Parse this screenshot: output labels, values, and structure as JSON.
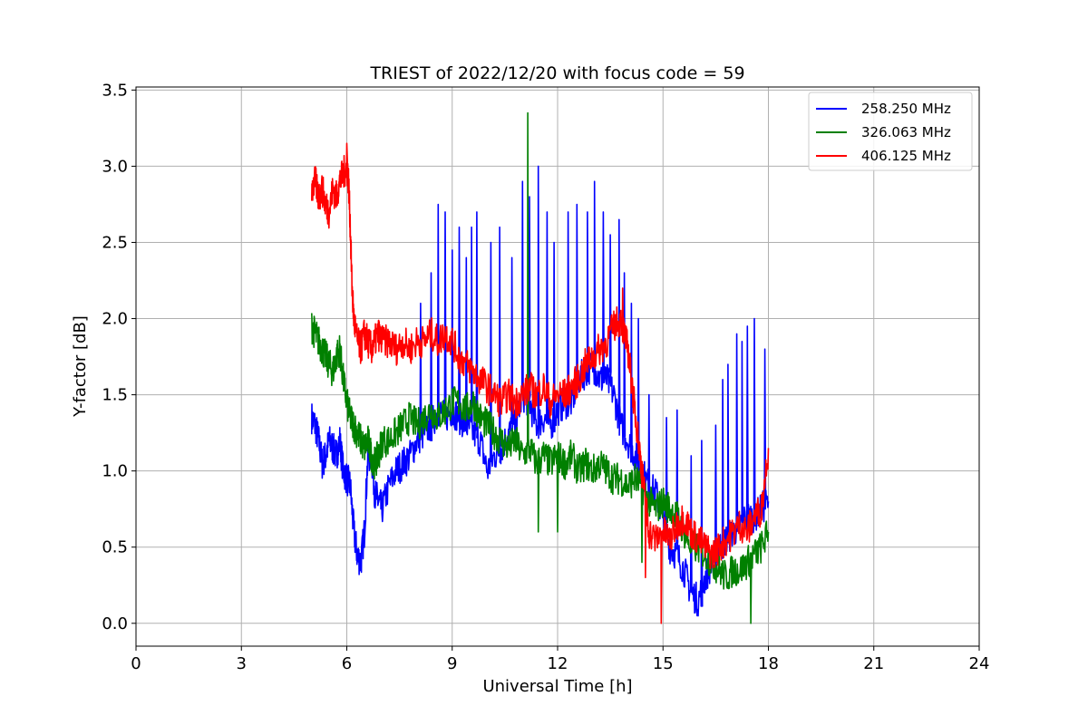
{
  "chart_data": {
    "type": "line",
    "title": "TRIEST of 2022/12/20 with focus code = 59",
    "xlabel": "Universal Time [h]",
    "ylabel": "Y-factor [dB]",
    "xlim": [
      0,
      24
    ],
    "ylim": [
      -0.15,
      3.52
    ],
    "xticks": [
      0,
      3,
      6,
      9,
      12,
      15,
      18,
      21,
      24
    ],
    "yticks": [
      0.0,
      0.5,
      1.0,
      1.5,
      2.0,
      2.5,
      3.0,
      3.5
    ],
    "xtick_labels": [
      "0",
      "3",
      "6",
      "9",
      "12",
      "15",
      "18",
      "21",
      "24"
    ],
    "ytick_labels": [
      "0.0",
      "0.5",
      "1.0",
      "1.5",
      "2.0",
      "2.5",
      "3.0",
      "3.5"
    ],
    "grid": true,
    "legend_position": "top-right",
    "series": [
      {
        "name": "258.250 MHz",
        "color": "#0000ff",
        "x": [
          5.0,
          5.1,
          5.2,
          5.3,
          5.4,
          5.5,
          5.6,
          5.7,
          5.8,
          5.9,
          6.0,
          6.1,
          6.2,
          6.3,
          6.4,
          6.5,
          6.6,
          6.7,
          6.8,
          6.9,
          7.0,
          7.2,
          7.4,
          7.6,
          7.8,
          8.0,
          8.2,
          8.4,
          8.6,
          8.8,
          9.0,
          9.2,
          9.4,
          9.6,
          9.8,
          10.0,
          10.2,
          10.4,
          10.6,
          10.8,
          11.0,
          11.2,
          11.4,
          11.6,
          11.8,
          12.0,
          12.2,
          12.4,
          12.6,
          12.8,
          13.0,
          13.2,
          13.4,
          13.6,
          13.8,
          14.0,
          14.2,
          14.4,
          14.6,
          14.8,
          15.0,
          15.2,
          15.4,
          15.6,
          15.8,
          16.0,
          16.2,
          16.4,
          16.6,
          16.8,
          17.0,
          17.2,
          17.4,
          17.6,
          17.8,
          18.0
        ],
        "y": [
          1.35,
          1.3,
          1.2,
          1.05,
          1.1,
          1.2,
          1.15,
          1.1,
          1.2,
          1.0,
          0.95,
          0.9,
          0.6,
          0.45,
          0.4,
          0.6,
          1.1,
          1.1,
          0.85,
          0.8,
          0.75,
          0.9,
          1.0,
          1.05,
          1.1,
          1.2,
          1.25,
          1.3,
          1.4,
          1.35,
          1.4,
          1.35,
          1.3,
          1.25,
          1.2,
          1.0,
          1.1,
          1.15,
          1.25,
          1.3,
          1.5,
          1.45,
          1.3,
          1.35,
          1.3,
          1.4,
          1.45,
          1.45,
          1.6,
          1.65,
          1.7,
          1.6,
          1.6,
          1.5,
          1.3,
          1.2,
          1.1,
          1.0,
          0.9,
          0.85,
          0.7,
          0.5,
          0.45,
          0.35,
          0.2,
          0.15,
          0.3,
          0.4,
          0.5,
          0.55,
          0.6,
          0.65,
          0.7,
          0.7,
          0.75,
          0.8
        ],
        "spikes": [
          [
            8.1,
            2.1
          ],
          [
            8.4,
            2.3
          ],
          [
            8.6,
            2.75
          ],
          [
            8.8,
            2.7
          ],
          [
            9.0,
            2.45
          ],
          [
            9.2,
            2.6
          ],
          [
            9.4,
            2.4
          ],
          [
            9.55,
            2.6
          ],
          [
            9.7,
            2.7
          ],
          [
            10.1,
            2.5
          ],
          [
            10.35,
            2.6
          ],
          [
            10.7,
            2.4
          ],
          [
            11.0,
            2.9
          ],
          [
            11.2,
            2.8
          ],
          [
            11.45,
            3.0
          ],
          [
            11.7,
            2.7
          ],
          [
            11.9,
            2.5
          ],
          [
            12.3,
            2.7
          ],
          [
            12.55,
            2.75
          ],
          [
            12.85,
            2.7
          ],
          [
            13.05,
            2.9
          ],
          [
            13.3,
            2.7
          ],
          [
            13.5,
            2.55
          ],
          [
            13.75,
            2.65
          ],
          [
            13.9,
            2.3
          ],
          [
            14.1,
            2.1
          ],
          [
            14.3,
            2.0
          ],
          [
            14.6,
            1.5
          ],
          [
            15.1,
            1.35
          ],
          [
            15.4,
            1.4
          ],
          [
            15.8,
            1.1
          ],
          [
            16.1,
            1.2
          ],
          [
            16.5,
            1.3
          ],
          [
            16.7,
            1.6
          ],
          [
            16.85,
            1.7
          ],
          [
            17.1,
            1.9
          ],
          [
            17.25,
            1.85
          ],
          [
            17.4,
            1.95
          ],
          [
            17.6,
            2.0
          ],
          [
            17.9,
            1.8
          ]
        ]
      },
      {
        "name": "326.063 MHz",
        "color": "#008000",
        "x": [
          5.0,
          5.1,
          5.2,
          5.3,
          5.4,
          5.5,
          5.6,
          5.7,
          5.8,
          5.9,
          6.0,
          6.1,
          6.2,
          6.3,
          6.4,
          6.5,
          6.6,
          6.7,
          6.8,
          6.9,
          7.0,
          7.2,
          7.4,
          7.6,
          7.8,
          8.0,
          8.2,
          8.4,
          8.6,
          8.8,
          9.0,
          9.2,
          9.4,
          9.6,
          9.8,
          10.0,
          10.2,
          10.4,
          10.6,
          10.8,
          11.0,
          11.2,
          11.4,
          11.6,
          11.8,
          12.0,
          12.2,
          12.4,
          12.6,
          12.8,
          13.0,
          13.2,
          13.4,
          13.6,
          13.8,
          14.0,
          14.2,
          14.4,
          14.6,
          14.8,
          15.0,
          15.2,
          15.4,
          15.6,
          15.8,
          16.0,
          16.2,
          16.4,
          16.6,
          16.8,
          17.0,
          17.2,
          17.4,
          17.6,
          17.8,
          18.0
        ],
        "y": [
          1.95,
          1.9,
          1.85,
          1.8,
          1.75,
          1.7,
          1.65,
          1.75,
          1.8,
          1.6,
          1.45,
          1.35,
          1.3,
          1.25,
          1.2,
          1.15,
          1.2,
          1.1,
          1.05,
          1.1,
          1.2,
          1.2,
          1.25,
          1.3,
          1.35,
          1.3,
          1.35,
          1.4,
          1.35,
          1.4,
          1.45,
          1.45,
          1.4,
          1.45,
          1.35,
          1.3,
          1.25,
          1.2,
          1.15,
          1.2,
          1.1,
          1.15,
          1.05,
          1.1,
          1.05,
          1.1,
          1.05,
          1.1,
          1.0,
          1.05,
          1.0,
          1.05,
          1.0,
          0.95,
          0.95,
          0.9,
          0.95,
          0.9,
          0.8,
          0.75,
          0.8,
          0.75,
          0.7,
          0.6,
          0.5,
          0.5,
          0.45,
          0.4,
          0.35,
          0.3,
          0.35,
          0.35,
          0.4,
          0.45,
          0.5,
          0.6
        ],
        "spikes": [
          [
            11.15,
            3.35
          ],
          [
            11.45,
            0.6
          ],
          [
            12.0,
            0.6
          ],
          [
            14.4,
            0.4
          ],
          [
            17.5,
            0.0
          ]
        ]
      },
      {
        "name": "406.125 MHz",
        "color": "#ff0000",
        "x": [
          5.0,
          5.1,
          5.2,
          5.3,
          5.4,
          5.5,
          5.6,
          5.7,
          5.8,
          5.9,
          6.0,
          6.05,
          6.1,
          6.15,
          6.2,
          6.3,
          6.4,
          6.5,
          6.6,
          6.7,
          6.8,
          6.9,
          7.0,
          7.2,
          7.4,
          7.6,
          7.8,
          8.0,
          8.2,
          8.4,
          8.6,
          8.8,
          9.0,
          9.2,
          9.4,
          9.6,
          9.8,
          10.0,
          10.2,
          10.4,
          10.6,
          10.8,
          11.0,
          11.2,
          11.4,
          11.6,
          11.8,
          12.0,
          12.2,
          12.4,
          12.6,
          12.8,
          13.0,
          13.2,
          13.4,
          13.6,
          13.8,
          13.9,
          14.0,
          14.1,
          14.2,
          14.3,
          14.4,
          14.5,
          14.6,
          14.8,
          15.0,
          15.2,
          15.4,
          15.6,
          15.8,
          16.0,
          16.2,
          16.4,
          16.6,
          16.8,
          17.0,
          17.2,
          17.4,
          17.6,
          17.8,
          18.0
        ],
        "y": [
          2.85,
          2.9,
          2.8,
          2.85,
          2.75,
          2.7,
          2.85,
          2.8,
          2.9,
          2.95,
          3.0,
          2.9,
          2.6,
          2.2,
          2.0,
          1.85,
          1.8,
          1.9,
          1.85,
          1.8,
          1.85,
          1.9,
          1.85,
          1.85,
          1.8,
          1.85,
          1.8,
          1.85,
          1.85,
          1.9,
          1.85,
          1.9,
          1.85,
          1.75,
          1.7,
          1.65,
          1.6,
          1.55,
          1.5,
          1.45,
          1.5,
          1.45,
          1.5,
          1.55,
          1.5,
          1.55,
          1.45,
          1.5,
          1.5,
          1.55,
          1.6,
          1.7,
          1.75,
          1.8,
          1.85,
          1.95,
          2.0,
          1.9,
          1.8,
          1.6,
          1.4,
          1.2,
          1.0,
          0.8,
          0.6,
          0.55,
          0.6,
          0.55,
          0.65,
          0.7,
          0.6,
          0.55,
          0.5,
          0.45,
          0.5,
          0.55,
          0.6,
          0.65,
          0.6,
          0.7,
          0.75,
          1.15
        ],
        "spikes": [
          [
            6.0,
            3.15
          ],
          [
            13.85,
            2.2
          ],
          [
            14.95,
            0.0
          ],
          [
            14.5,
            0.3
          ]
        ]
      }
    ]
  }
}
